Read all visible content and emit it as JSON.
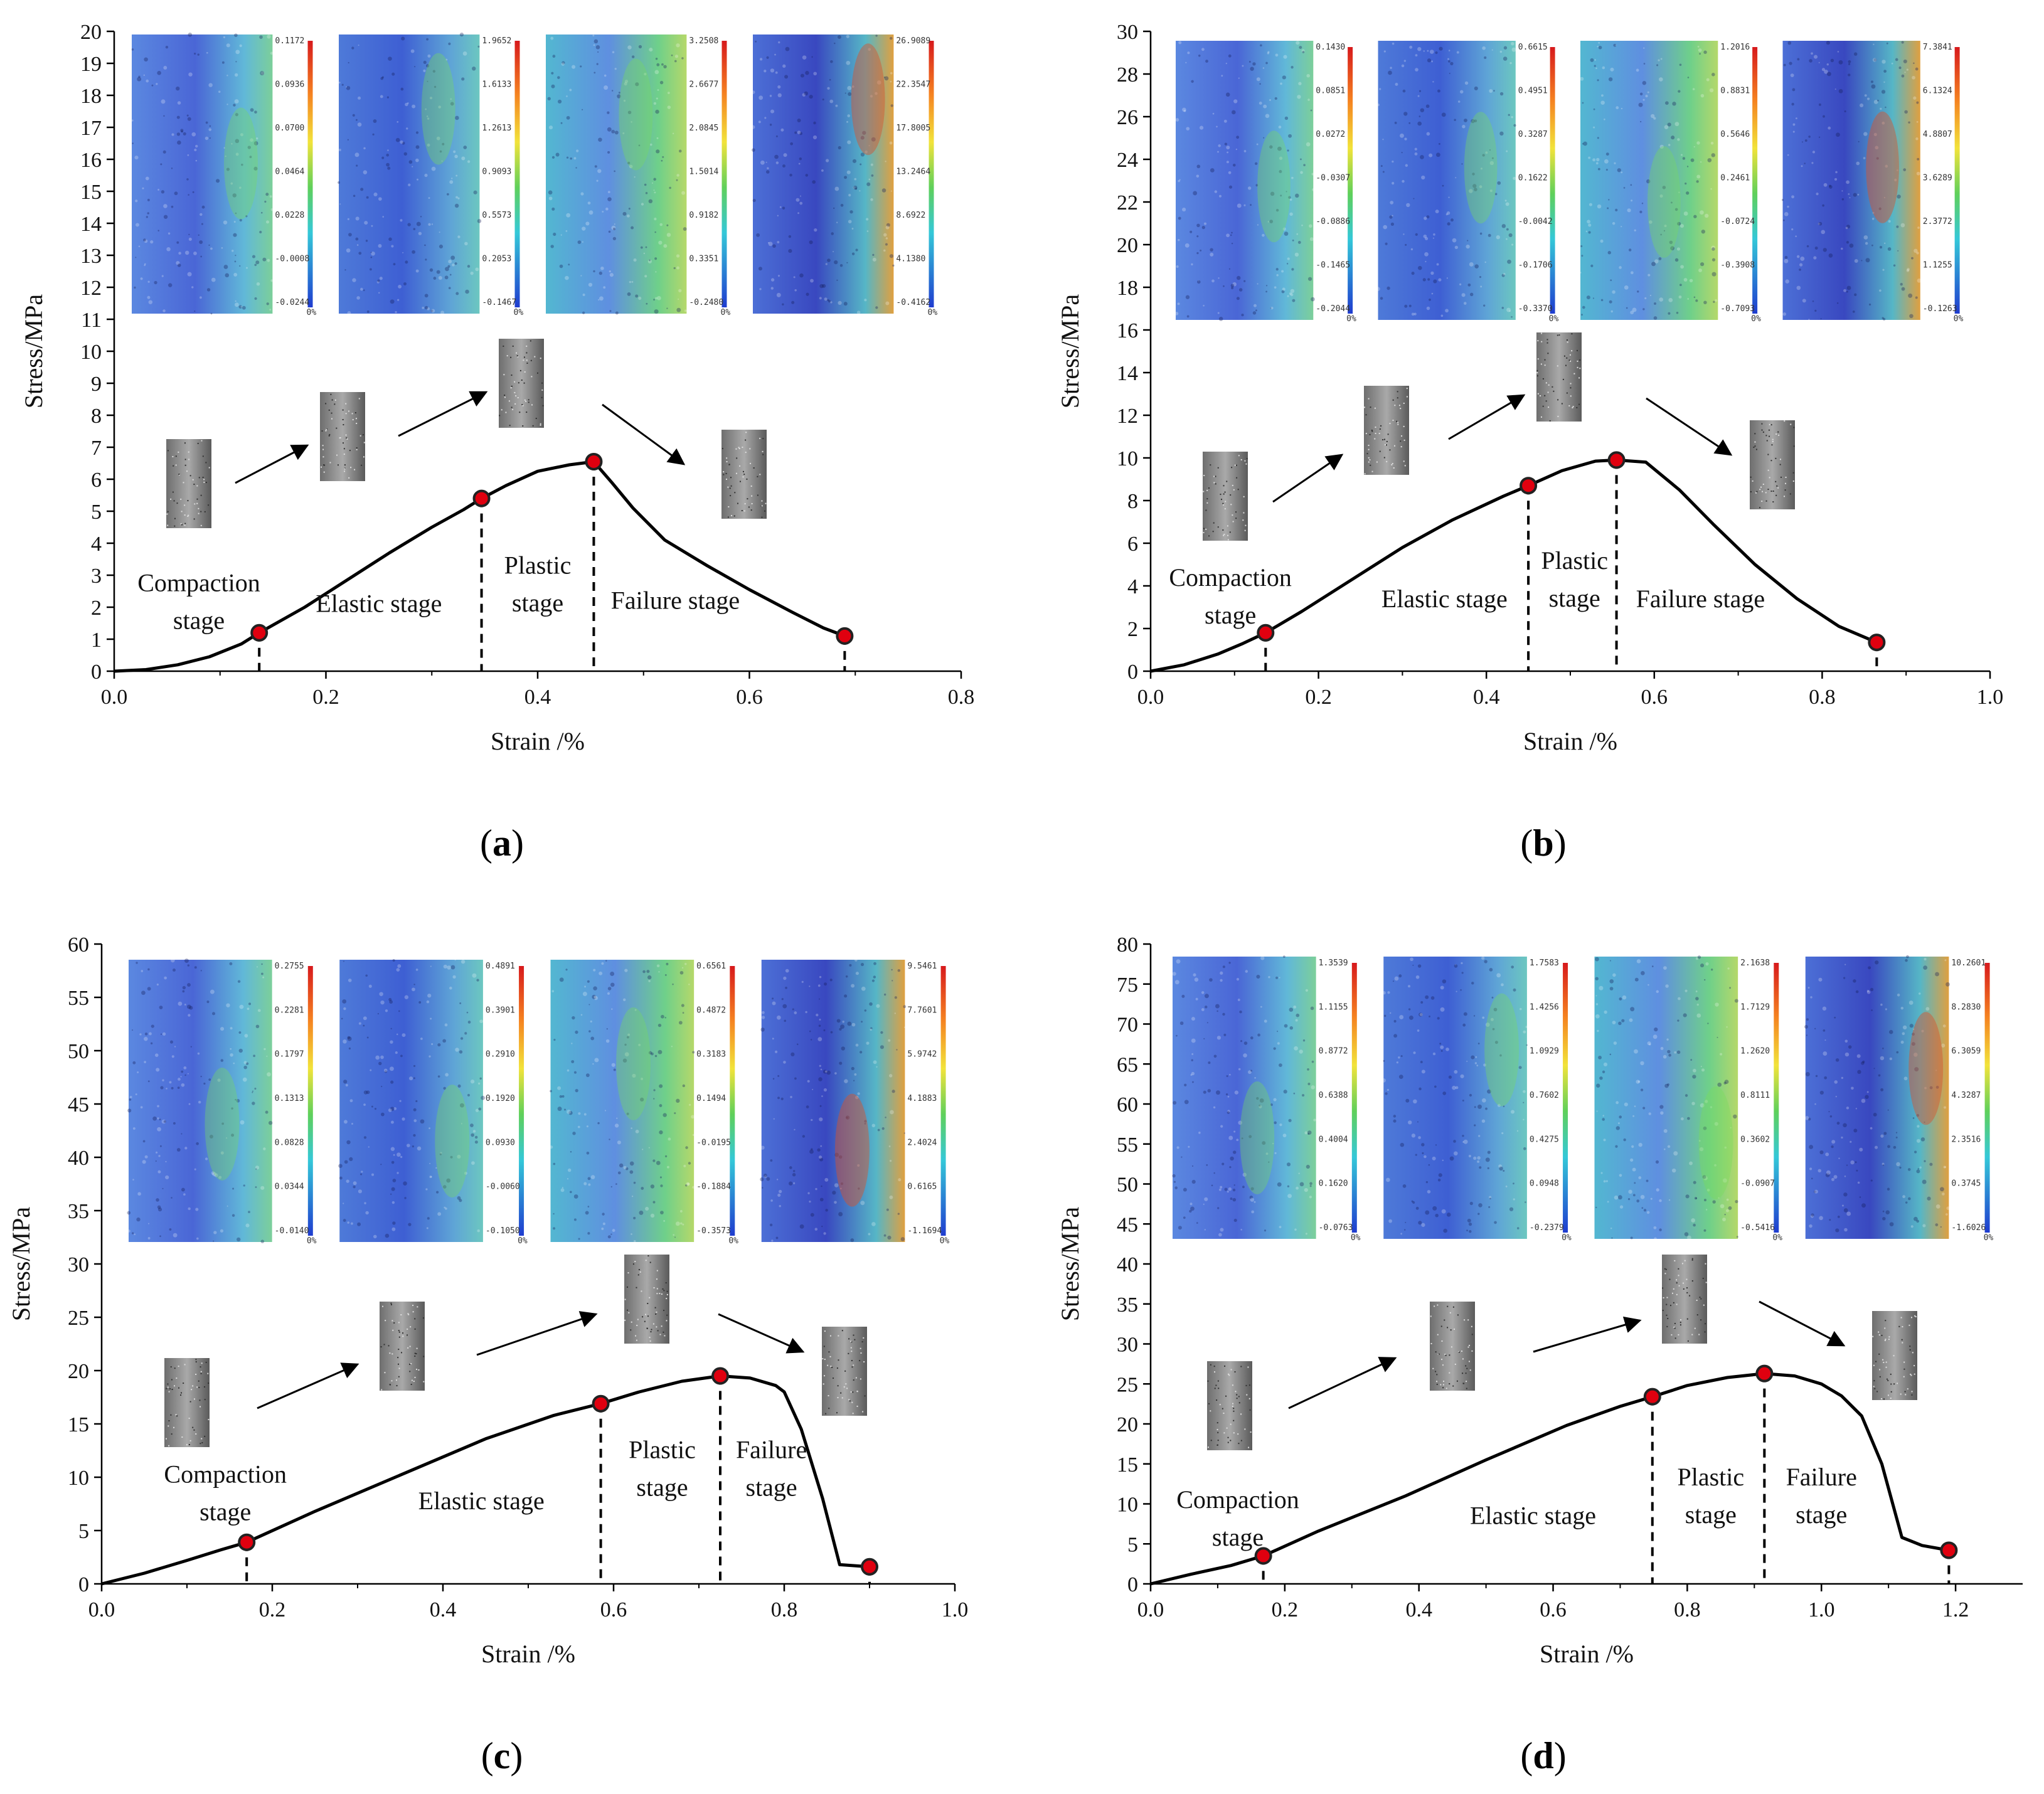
{
  "figure": {
    "colors": {
      "curve": "#000000",
      "marker_fill": "#e0000f",
      "marker_edge": "#222222",
      "axis": "#000000"
    }
  },
  "chart_data": [
    {
      "panel": "a",
      "caption": "a",
      "type": "line",
      "title": "",
      "xlabel": "Strain /%",
      "ylabel": "Stress/MPa",
      "xlim": [
        0.0,
        0.8
      ],
      "ylim": [
        0,
        20
      ],
      "xticks": [
        "0.0",
        "0.2",
        "0.4",
        "0.6",
        "0.8"
      ],
      "yticks": [
        "0",
        "1",
        "2",
        "3",
        "4",
        "5",
        "6",
        "7",
        "8",
        "9",
        "10",
        "11",
        "12",
        "13",
        "14",
        "15",
        "16",
        "17",
        "18",
        "19",
        "20"
      ],
      "curve": {
        "x": [
          0.0,
          0.03,
          0.06,
          0.09,
          0.12,
          0.137,
          0.18,
          0.22,
          0.26,
          0.3,
          0.33,
          0.347,
          0.37,
          0.4,
          0.43,
          0.453,
          0.47,
          0.49,
          0.52,
          0.56,
          0.6,
          0.64,
          0.67,
          0.69
        ],
        "y": [
          0.0,
          0.05,
          0.2,
          0.45,
          0.85,
          1.2,
          2.0,
          2.85,
          3.7,
          4.5,
          5.05,
          5.4,
          5.8,
          6.25,
          6.45,
          6.55,
          5.9,
          5.1,
          4.1,
          3.3,
          2.55,
          1.85,
          1.35,
          1.1
        ]
      },
      "markers": {
        "x": [
          0.137,
          0.347,
          0.453,
          0.69
        ],
        "y": [
          1.2,
          5.4,
          6.55,
          1.1
        ]
      },
      "stage_labels": [
        {
          "lines": [
            "Compaction",
            "stage"
          ],
          "x": 0.08,
          "y": 2.5
        },
        {
          "lines": [
            "Elastic stage"
          ],
          "x": 0.25,
          "y": 1.85
        },
        {
          "lines": [
            "Plastic",
            "stage"
          ],
          "x": 0.4,
          "y": 3.05
        },
        {
          "lines": [
            "Failure stage"
          ],
          "x": 0.53,
          "y": 1.95
        }
      ],
      "colorbars": [
        {
          "labels": [
            "0.1172",
            "0.0936",
            "0.0700",
            "0.0464",
            "0.0228",
            "-0.0008",
            "-0.0244"
          ],
          "unit": "0%"
        },
        {
          "labels": [
            "1.9652",
            "1.6133",
            "1.2613",
            "0.9093",
            "0.5573",
            "0.2053",
            "-0.1467"
          ],
          "unit": "0%"
        },
        {
          "labels": [
            "3.2508",
            "2.6677",
            "2.0845",
            "1.5014",
            "0.9182",
            "0.3351",
            "-0.2480"
          ],
          "unit": "0%"
        },
        {
          "labels": [
            "26.9089",
            "22.3547",
            "17.8005",
            "13.2464",
            "8.6922",
            "4.1380",
            "-0.4162"
          ],
          "unit": "0%"
        }
      ]
    },
    {
      "panel": "b",
      "caption": "b",
      "type": "line",
      "title": "",
      "xlabel": "Strain /%",
      "ylabel": "Stress/MPa",
      "xlim": [
        0.0,
        1.0
      ],
      "ylim": [
        0,
        30
      ],
      "xticks": [
        "0.0",
        "0.2",
        "0.4",
        "0.6",
        "0.8",
        "1.0"
      ],
      "yticks": [
        "0",
        "2",
        "4",
        "6",
        "8",
        "10",
        "12",
        "14",
        "16",
        "18",
        "20",
        "22",
        "24",
        "26",
        "28",
        "30"
      ],
      "curve": {
        "x": [
          0.0,
          0.04,
          0.08,
          0.11,
          0.137,
          0.18,
          0.24,
          0.3,
          0.36,
          0.42,
          0.45,
          0.49,
          0.53,
          0.555,
          0.59,
          0.63,
          0.67,
          0.72,
          0.77,
          0.82,
          0.865
        ],
        "y": [
          0.0,
          0.3,
          0.8,
          1.3,
          1.8,
          2.8,
          4.3,
          5.8,
          7.1,
          8.2,
          8.7,
          9.4,
          9.85,
          9.9,
          9.8,
          8.5,
          6.9,
          5.0,
          3.4,
          2.1,
          1.35
        ]
      },
      "markers": {
        "x": [
          0.137,
          0.45,
          0.555,
          0.865
        ],
        "y": [
          1.8,
          8.7,
          9.9,
          1.35
        ]
      },
      "stage_labels": [
        {
          "lines": [
            "Compaction",
            "stage"
          ],
          "x": 0.095,
          "y": 4.0
        },
        {
          "lines": [
            "Elastic stage"
          ],
          "x": 0.35,
          "y": 3.0
        },
        {
          "lines": [
            "Plastic",
            "stage"
          ],
          "x": 0.505,
          "y": 4.8
        },
        {
          "lines": [
            "Failure stage"
          ],
          "x": 0.655,
          "y": 3.0
        }
      ],
      "colorbars": [
        {
          "labels": [
            "0.1430",
            "0.0851",
            "0.0272",
            "-0.0307",
            "-0.0886",
            "-0.1465",
            "-0.2044"
          ],
          "unit": "0%"
        },
        {
          "labels": [
            "0.6615",
            "0.4951",
            "0.3287",
            "0.1622",
            "-0.0042",
            "-0.1706",
            "-0.3370"
          ],
          "unit": "0%"
        },
        {
          "labels": [
            "1.2016",
            "0.8831",
            "0.5646",
            "0.2461",
            "-0.0724",
            "-0.3908",
            "-0.7093"
          ],
          "unit": "0%"
        },
        {
          "labels": [
            "7.3841",
            "6.1324",
            "4.8807",
            "3.6289",
            "2.3772",
            "1.1255",
            "-0.1263"
          ],
          "unit": "0%"
        }
      ]
    },
    {
      "panel": "c",
      "caption": "c",
      "type": "line",
      "title": "",
      "xlabel": "Strain /%",
      "ylabel": "Stress/MPa",
      "xlim": [
        0.0,
        1.0
      ],
      "ylim": [
        0,
        60
      ],
      "xticks": [
        "0.0",
        "0.2",
        "0.4",
        "0.6",
        "0.8",
        "1.0"
      ],
      "yticks": [
        "0",
        "5",
        "10",
        "15",
        "20",
        "25",
        "30",
        "35",
        "40",
        "45",
        "50",
        "55",
        "60"
      ],
      "curve": {
        "x": [
          0.0,
          0.05,
          0.1,
          0.14,
          0.17,
          0.25,
          0.35,
          0.45,
          0.53,
          0.585,
          0.63,
          0.68,
          0.725,
          0.76,
          0.79,
          0.8,
          0.82,
          0.845,
          0.865,
          0.9
        ],
        "y": [
          0.0,
          1.0,
          2.2,
          3.2,
          3.9,
          6.8,
          10.2,
          13.6,
          15.8,
          16.9,
          18.0,
          19.0,
          19.5,
          19.3,
          18.6,
          18.0,
          14.5,
          8.0,
          1.8,
          1.6
        ]
      },
      "markers": {
        "x": [
          0.17,
          0.585,
          0.725,
          0.9
        ],
        "y": [
          3.9,
          16.9,
          19.5,
          1.6
        ]
      },
      "stage_labels": [
        {
          "lines": [
            "Compaction",
            "stage"
          ],
          "x": 0.145,
          "y": 9.5
        },
        {
          "lines": [
            "Elastic stage"
          ],
          "x": 0.445,
          "y": 7.0
        },
        {
          "lines": [
            "Plastic",
            "stage"
          ],
          "x": 0.657,
          "y": 11.8
        },
        {
          "lines": [
            "Failure",
            "stage"
          ],
          "x": 0.785,
          "y": 11.8
        }
      ],
      "colorbars": [
        {
          "labels": [
            "0.2755",
            "0.2281",
            "0.1797",
            "0.1313",
            "0.0828",
            "0.0344",
            "-0.0140"
          ],
          "unit": "0%"
        },
        {
          "labels": [
            "0.4891",
            "0.3901",
            "0.2910",
            "0.1920",
            "0.0930",
            "-0.0060",
            "-0.1050"
          ],
          "unit": "0%"
        },
        {
          "labels": [
            "0.6561",
            "0.4872",
            "0.3183",
            "0.1494",
            "-0.0195",
            "-0.1884",
            "-0.3573"
          ],
          "unit": "0%"
        },
        {
          "labels": [
            "9.5461",
            "7.7601",
            "5.9742",
            "4.1883",
            "2.4024",
            "0.6165",
            "-1.1694"
          ],
          "unit": "0%"
        }
      ]
    },
    {
      "panel": "d",
      "caption": "d",
      "type": "line",
      "title": "",
      "xlabel": "Strain /%",
      "ylabel": "Stress/MPa",
      "xlim": [
        0.0,
        1.3
      ],
      "ylim": [
        0,
        80
      ],
      "xticks": [
        "0.0",
        "0.2",
        "0.4",
        "0.6",
        "0.8",
        "1.0",
        "1.2"
      ],
      "yticks": [
        "0",
        "5",
        "10",
        "15",
        "20",
        "25",
        "30",
        "35",
        "40",
        "45",
        "50",
        "55",
        "60",
        "65",
        "70",
        "75",
        "80"
      ],
      "curve": {
        "x": [
          0.0,
          0.06,
          0.12,
          0.168,
          0.25,
          0.38,
          0.5,
          0.62,
          0.7,
          0.748,
          0.8,
          0.86,
          0.915,
          0.96,
          1.0,
          1.03,
          1.06,
          1.09,
          1.12,
          1.15,
          1.19
        ],
        "y": [
          0.0,
          1.2,
          2.3,
          3.5,
          6.6,
          11.0,
          15.5,
          19.8,
          22.2,
          23.4,
          24.8,
          25.8,
          26.3,
          26.0,
          25.0,
          23.5,
          21.0,
          15.0,
          5.8,
          4.8,
          4.2
        ]
      },
      "markers": {
        "x": [
          0.168,
          0.748,
          0.915,
          1.19
        ],
        "y": [
          3.5,
          23.4,
          26.3,
          4.2
        ]
      },
      "stage_labels": [
        {
          "lines": [
            "Compaction",
            "stage"
          ],
          "x": 0.13,
          "y": 9.5
        },
        {
          "lines": [
            "Elastic stage"
          ],
          "x": 0.57,
          "y": 7.5
        },
        {
          "lines": [
            "Plastic",
            "stage"
          ],
          "x": 0.835,
          "y": 12.3
        },
        {
          "lines": [
            "Failure",
            "stage"
          ],
          "x": 1.0,
          "y": 12.3
        }
      ],
      "colorbars": [
        {
          "labels": [
            "1.3539",
            "1.1155",
            "0.8772",
            "0.6388",
            "0.4004",
            "0.1620",
            "-0.0763"
          ],
          "unit": "0%"
        },
        {
          "labels": [
            "1.7583",
            "1.4256",
            "1.0929",
            "0.7602",
            "0.4275",
            "0.0948",
            "-0.2379"
          ],
          "unit": "0%"
        },
        {
          "labels": [
            "2.1638",
            "1.7129",
            "1.2620",
            "0.8111",
            "0.3602",
            "-0.0907",
            "-0.5416"
          ],
          "unit": "0%"
        },
        {
          "labels": [
            "10.2601",
            "8.2830",
            "6.3059",
            "4.3287",
            "2.3516",
            "0.3745",
            "-1.6026"
          ],
          "unit": "0%"
        }
      ]
    }
  ]
}
